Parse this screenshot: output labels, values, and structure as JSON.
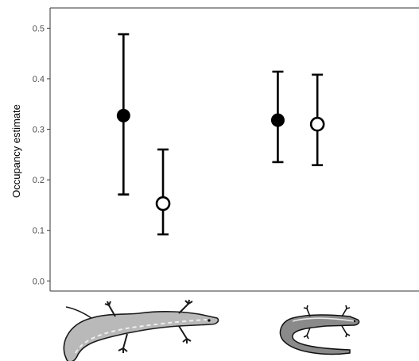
{
  "chart_data": {
    "type": "scatter",
    "ylabel": "Occupancy estimate",
    "xlabel": "",
    "ylim": [
      -0.02,
      0.54
    ],
    "yticks": [
      0.0,
      0.1,
      0.2,
      0.3,
      0.4,
      0.5
    ],
    "ytick_labels": [
      "0.0",
      "0.1",
      "0.2",
      "0.3",
      "0.4",
      "0.5"
    ],
    "grid": false,
    "categories": [
      "species-1",
      "species-2"
    ],
    "category_labels_are_pictures": true,
    "series": [
      {
        "marker": "filled-circle",
        "color": "#000000",
        "points": [
          {
            "category": "species-1",
            "y": 0.327,
            "lower": 0.171,
            "upper": 0.488
          },
          {
            "category": "species-2",
            "y": 0.318,
            "lower": 0.235,
            "upper": 0.414
          }
        ]
      },
      {
        "marker": "open-circle",
        "color": "#000000",
        "points": [
          {
            "category": "species-1",
            "y": 0.153,
            "lower": 0.092,
            "upper": 0.26
          },
          {
            "category": "species-2",
            "y": 0.31,
            "lower": 0.229,
            "upper": 0.408
          }
        ]
      }
    ],
    "x_positions": [
      0.85,
      1.9,
      4.95,
      6.0
    ],
    "xlim": [
      -1.1,
      8.7
    ],
    "pictograms": [
      "salamander-large-icon",
      "salamander-small-icon"
    ]
  }
}
